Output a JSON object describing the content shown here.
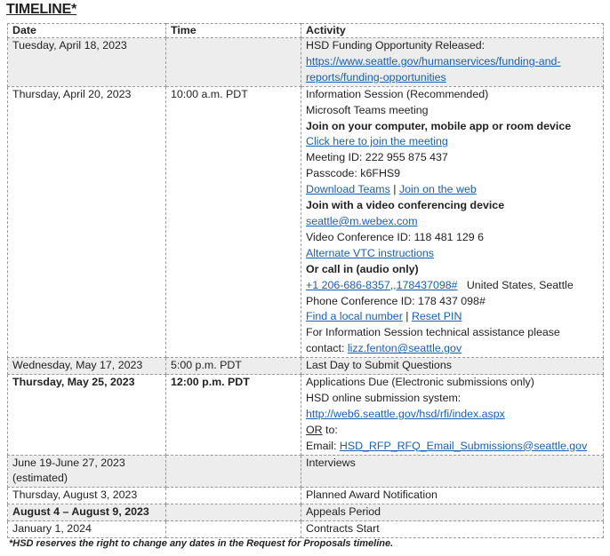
{
  "title": "TIMELINE*",
  "headers": [
    "Date",
    "Time",
    "Activity"
  ],
  "rows": [
    {
      "date": "Tuesday, April 18, 2023",
      "time": "",
      "lines": [
        {
          "t": "HSD Funding Opportunity Released:"
        },
        {
          "link": "https://www.seattle.gov/humanservices/funding-and-reports/funding-opportunities"
        }
      ]
    },
    {
      "date": "Thursday, April 20, 2023",
      "time": "10:00 a.m. PDT",
      "lines": [
        {
          "t": "Information Session (Recommended)"
        },
        {
          "t": "Microsoft Teams meeting"
        },
        {
          "b": "Join on your computer, mobile app or room device"
        },
        {
          "link": "Click here to join the meeting"
        },
        {
          "t": "Meeting ID: 222 955 875 437"
        },
        {
          "t": "Passcode: k6FHS9"
        },
        {
          "link": "Download Teams",
          "sep": " | ",
          "link2": "Join on the web"
        },
        {
          "b": "Join with a video conferencing device"
        },
        {
          "link": "seattle@m.webex.com"
        },
        {
          "t": "Video Conference ID: 118 481 129 6"
        },
        {
          "link": "Alternate VTC instructions"
        },
        {
          "b": "Or call in (audio only)"
        },
        {
          "link": "+1 206-686-8357,,178437098#",
          "after": "   United States, Seattle"
        },
        {
          "t": "Phone Conference ID: 178 437 098#"
        },
        {
          "link": "Find a local number",
          "sep": " | ",
          "link2": "Reset PIN"
        },
        {
          "t": "For Information Session technical assistance please contact: ",
          "link": "lizz.fenton@seattle.gov"
        }
      ]
    },
    {
      "date": "Wednesday, May 17, 2023",
      "time": "5:00 p.m. PDT",
      "lines": [
        {
          "t": "Last Day to Submit Questions"
        }
      ]
    },
    {
      "date": "Thursday, May 25, 2023",
      "time": "12:00 p.m. PDT",
      "bold": true,
      "lines": [
        {
          "t": "Applications Due (Electronic submissions only)"
        },
        {
          "t": "HSD online submission system:"
        },
        {
          "link": "http://web6.seattle.gov/hsd/rfi/index.aspx"
        },
        {
          "u": "OR",
          "after": " to:"
        },
        {
          "t": "Email: ",
          "link": "HSD_RFP_RFQ_Email_Submissions@seattle.gov"
        }
      ]
    },
    {
      "date": "June 19-June 27, 2023 (estimated)",
      "time": "",
      "lines": [
        {
          "t": "Interviews"
        }
      ]
    },
    {
      "date": "Thursday, August 3, 2023",
      "time": "",
      "lines": [
        {
          "t": "Planned Award Notification"
        }
      ]
    },
    {
      "date": "August 4 – August 9, 2023",
      "time": "",
      "bold": true,
      "lines": [
        {
          "t": "Appeals Period"
        }
      ]
    },
    {
      "date": "January 1, 2024",
      "time": "",
      "lines": [
        {
          "t": "Contracts Start"
        }
      ]
    }
  ],
  "footnote": "*HSD reserves the right to change any dates in the Request for Proposals timeline."
}
